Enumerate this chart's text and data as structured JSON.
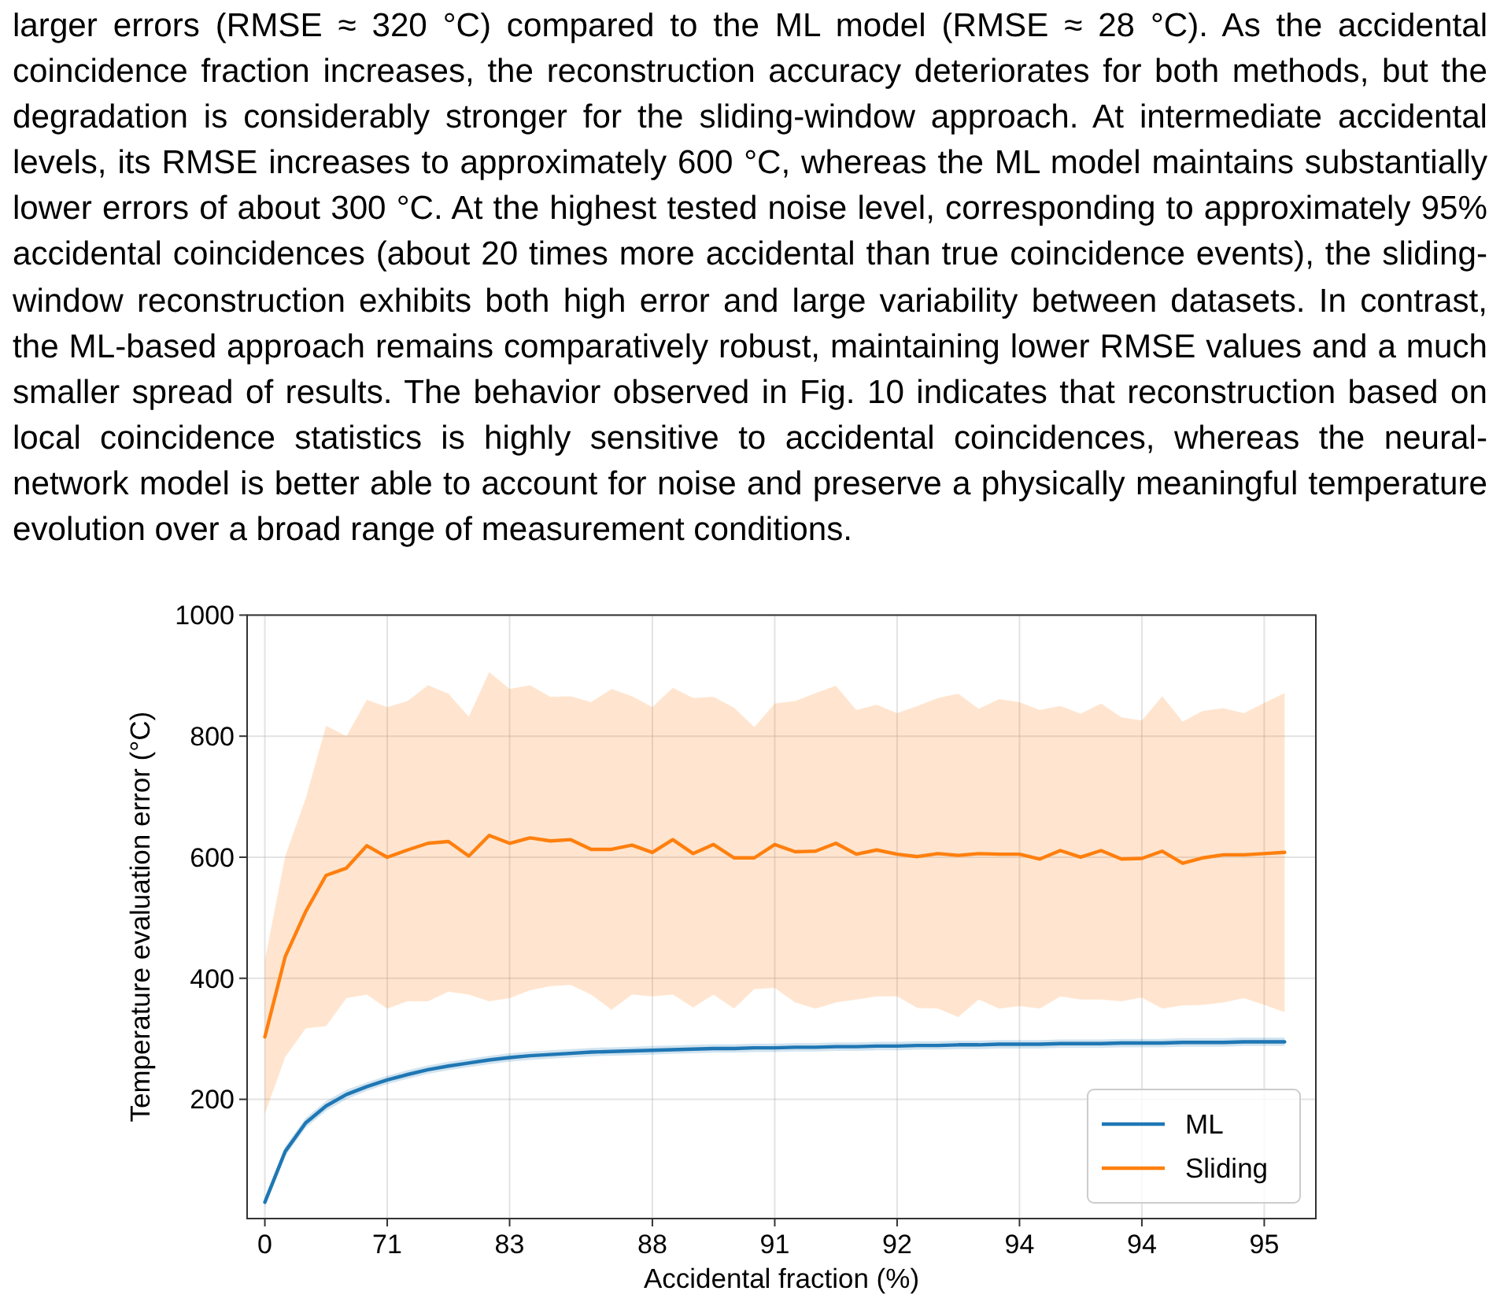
{
  "chart_data": {
    "type": "line",
    "xlabel": "Accidental fraction (%)",
    "ylabel": "Temperature evaluation error (°C)",
    "annotations": [
      "larger errors (RMSE ≈ 320 °C) compared to the ML model (RMSE ≈ 28 °C). As the accidental coincidence fraction increases, the reconstruction accuracy deteriorates for both methods, but the degradation is considerably stronger for the sliding-window approach. At intermediate accidental levels, its RMSE increases to approximately 600 °C, whereas the ML model maintains substantially lower errors of about 300 °C. At the highest tested noise level, corresponding to approximately 95% accidental coincidences (about 20 times more accidental than true coincidence events), the sliding-window reconstruction exhibits both high error and large variability between datasets. In contrast, the ML-based approach remains comparatively robust, maintaining lower RMSE values and a much smaller spread of results. The behavior observed in Fig. 10 indicates that reconstruction based on local coincidence statistics is highly sensitive to accidental coincidences, whereas the neural-network model is better able to account for noise and preserve a physically meaningful temperature evolution over a broad range of measurement conditions."
    ],
    "categories": [
      "0",
      null,
      null,
      null,
      null,
      null,
      "71",
      null,
      null,
      null,
      null,
      null,
      "83",
      null,
      null,
      null,
      null,
      null,
      null,
      "88",
      null,
      null,
      null,
      null,
      null,
      "91",
      null,
      null,
      null,
      null,
      null,
      "92",
      null,
      null,
      null,
      null,
      null,
      "94",
      null,
      null,
      null,
      null,
      null,
      "94",
      null,
      null,
      null,
      null,
      null,
      "95",
      null
    ],
    "ylim": [
      3,
      1000
    ],
    "yticks": [
      200,
      400,
      600,
      800,
      1000
    ],
    "grid": true,
    "legend": "bottom right",
    "line_style": "solid",
    "series": [
      {
        "name": "ML",
        "color": "#1f77b4",
        "values": [
          30,
          114,
          161,
          189,
          208,
          221,
          232,
          241,
          249,
          255,
          260,
          265,
          269,
          272,
          274,
          276,
          278,
          279,
          280,
          281,
          282,
          283,
          284,
          284,
          285,
          285,
          286,
          286,
          287,
          287,
          288,
          288,
          289,
          289,
          290,
          290,
          291,
          291,
          291,
          292,
          292,
          292,
          293,
          293,
          293,
          294,
          294,
          294,
          295,
          295,
          295
        ],
        "lower": [
          22,
          106,
          153,
          181,
          200,
          214,
          225,
          234,
          242,
          248,
          253,
          258,
          262,
          265,
          267,
          269,
          271,
          272,
          273,
          274,
          275,
          276,
          277,
          277,
          278,
          278,
          279,
          279,
          280,
          280,
          281,
          281,
          282,
          282,
          283,
          283,
          284,
          284,
          284,
          285,
          285,
          285,
          286,
          286,
          286,
          287,
          287,
          287,
          288,
          288,
          288
        ],
        "upper": [
          38,
          122,
          169,
          197,
          216,
          228,
          239,
          248,
          256,
          262,
          267,
          272,
          276,
          279,
          281,
          283,
          285,
          286,
          287,
          288,
          289,
          290,
          291,
          291,
          292,
          292,
          293,
          293,
          294,
          294,
          295,
          295,
          296,
          296,
          297,
          297,
          298,
          298,
          298,
          299,
          299,
          299,
          300,
          300,
          300,
          301,
          301,
          301,
          302,
          302,
          302
        ]
      },
      {
        "name": "Sliding",
        "color": "#ff7f0e",
        "values": [
          303,
          436,
          510,
          570,
          582,
          619,
          600,
          612,
          623,
          626,
          602,
          636,
          623,
          632,
          627,
          629,
          613,
          613,
          620,
          608,
          629,
          606,
          621,
          599,
          599,
          621,
          609,
          610,
          623,
          605,
          612,
          605,
          601,
          606,
          603,
          606,
          605,
          605,
          597,
          611,
          600,
          611,
          597,
          598,
          610,
          590,
          599,
          604,
          604,
          606,
          608
        ],
        "lower": [
          176,
          270,
          317,
          321,
          367,
          373,
          350,
          362,
          362,
          378,
          373,
          362,
          367,
          380,
          387,
          389,
          373,
          348,
          373,
          370,
          373,
          352,
          373,
          350,
          382,
          384,
          360,
          350,
          360,
          365,
          370,
          370,
          351,
          350,
          336,
          365,
          350,
          354,
          350,
          370,
          365,
          365,
          362,
          368,
          350,
          355,
          356,
          360,
          367,
          356,
          344
        ],
        "upper": [
          430,
          602,
          697,
          817,
          800,
          860,
          848,
          858,
          884,
          870,
          832,
          906,
          878,
          884,
          865,
          866,
          856,
          878,
          866,
          848,
          880,
          863,
          865,
          847,
          815,
          854,
          858,
          871,
          883,
          843,
          852,
          838,
          850,
          863,
          870,
          845,
          861,
          856,
          843,
          850,
          837,
          854,
          831,
          826,
          866,
          824,
          842,
          846,
          838,
          855,
          871
        ]
      }
    ]
  }
}
